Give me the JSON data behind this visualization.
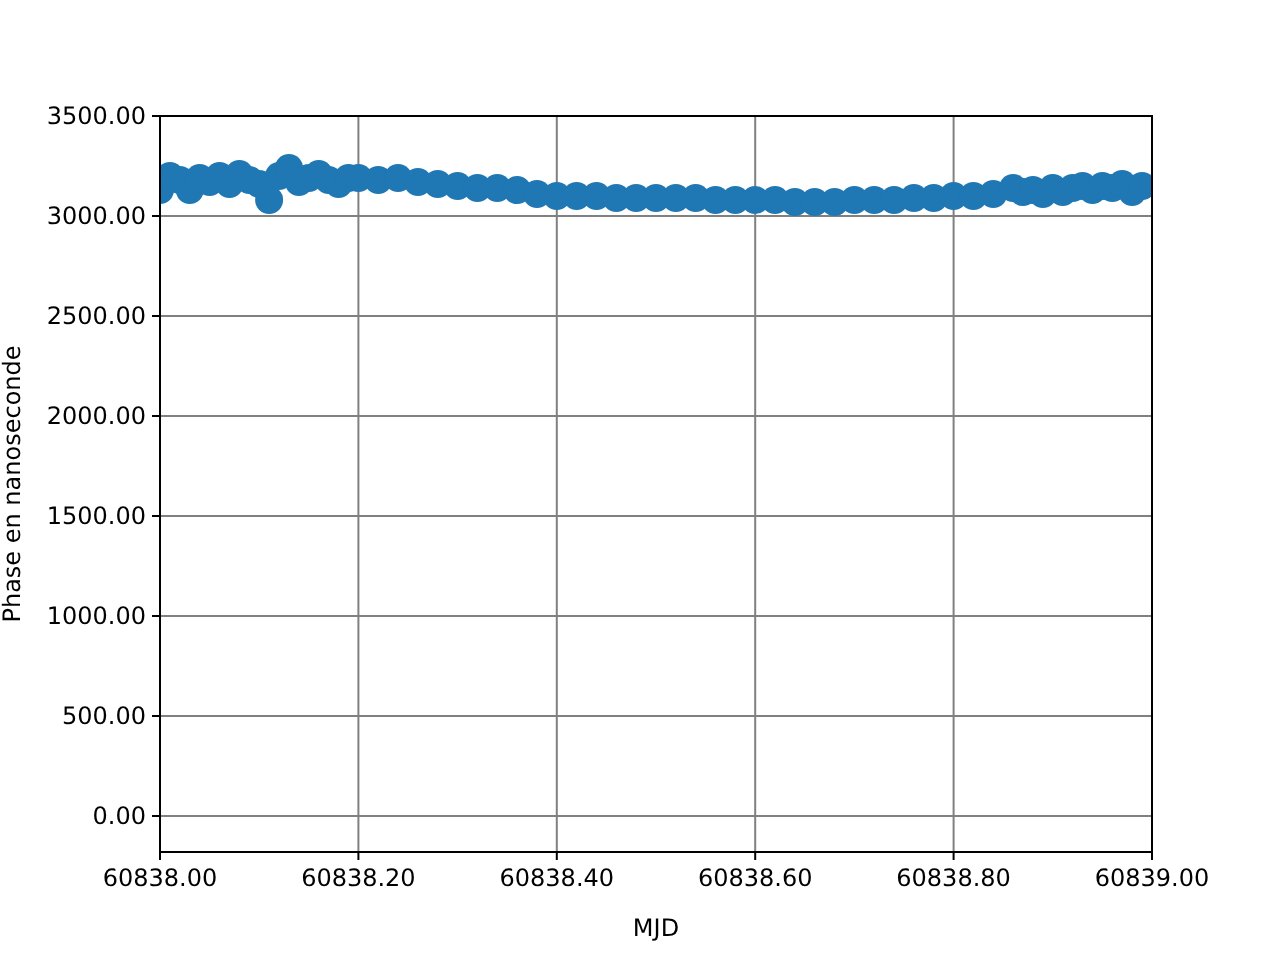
{
  "chart_data": {
    "type": "scatter",
    "xlabel": "MJD",
    "ylabel": "Phase en nanoseconde",
    "xlim": [
      60838,
      60839
    ],
    "ylim": [
      -180,
      3500
    ],
    "xticks": [
      {
        "value": 60838,
        "label": "60838.00"
      },
      {
        "value": 60838.2,
        "label": "60838.20"
      },
      {
        "value": 60838.4,
        "label": "60838.40"
      },
      {
        "value": 60838.6,
        "label": "60838.60"
      },
      {
        "value": 60838.8,
        "label": "60838.80"
      },
      {
        "value": 60839,
        "label": "60839.00"
      }
    ],
    "yticks": [
      {
        "value": 0,
        "label": "0.00"
      },
      {
        "value": 500,
        "label": "500.00"
      },
      {
        "value": 1000,
        "label": "1000.00"
      },
      {
        "value": 1500,
        "label": "1500.00"
      },
      {
        "value": 2000,
        "label": "2000.00"
      },
      {
        "value": 2500,
        "label": "2500.00"
      },
      {
        "value": 3000,
        "label": "3000.00"
      },
      {
        "value": 3500,
        "label": "3500.00"
      }
    ],
    "grid": true,
    "marker": "circle",
    "series": [
      {
        "color": "#1f77b4",
        "x": [
          60838.0,
          60838.01,
          60838.02,
          60838.03,
          60838.04,
          60838.05,
          60838.06,
          60838.07,
          60838.08,
          60838.09,
          60838.1,
          60838.11,
          60838.12,
          60838.13,
          60838.14,
          60838.15,
          60838.16,
          60838.17,
          60838.18,
          60838.19,
          60838.2,
          60838.22,
          60838.24,
          60838.26,
          60838.28,
          60838.3,
          60838.32,
          60838.34,
          60838.36,
          60838.38,
          60838.4,
          60838.42,
          60838.44,
          60838.46,
          60838.48,
          60838.5,
          60838.52,
          60838.54,
          60838.56,
          60838.58,
          60838.6,
          60838.62,
          60838.64,
          60838.66,
          60838.68,
          60838.7,
          60838.72,
          60838.74,
          60838.76,
          60838.78,
          60838.8,
          60838.82,
          60838.84,
          60838.86,
          60838.87,
          60838.88,
          60838.89,
          60838.9,
          60838.91,
          60838.92,
          60838.93,
          60838.94,
          60838.95,
          60838.96,
          60838.97,
          60838.98,
          60838.99
        ],
        "values": [
          3130,
          3200,
          3180,
          3130,
          3190,
          3170,
          3200,
          3160,
          3210,
          3180,
          3160,
          3080,
          3200,
          3240,
          3170,
          3190,
          3210,
          3180,
          3160,
          3190,
          3190,
          3180,
          3190,
          3170,
          3160,
          3150,
          3140,
          3140,
          3130,
          3110,
          3100,
          3100,
          3100,
          3090,
          3090,
          3090,
          3090,
          3090,
          3080,
          3080,
          3080,
          3080,
          3070,
          3070,
          3070,
          3080,
          3080,
          3080,
          3090,
          3090,
          3100,
          3100,
          3110,
          3140,
          3120,
          3130,
          3110,
          3140,
          3120,
          3140,
          3150,
          3130,
          3150,
          3140,
          3160,
          3120,
          3150
        ]
      }
    ]
  }
}
